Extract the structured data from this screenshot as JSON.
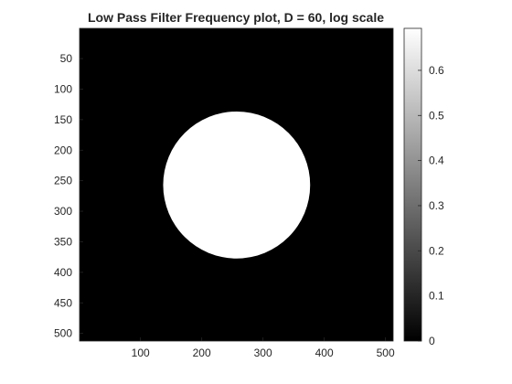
{
  "chart_data": {
    "type": "heatmap",
    "title": "Low Pass Filter Frequency plot, D = 60, log scale",
    "xlabel": "",
    "ylabel": "",
    "image_size": [
      512,
      512
    ],
    "xlim": [
      0.5,
      512.5
    ],
    "ylim": [
      0.5,
      512.5
    ],
    "y_direction": "reverse",
    "xticks": [
      100,
      200,
      300,
      400,
      500
    ],
    "yticks": [
      50,
      100,
      150,
      200,
      250,
      300,
      350,
      400,
      450,
      500
    ],
    "colormap": "gray",
    "clim": [
      0,
      0.6931
    ],
    "colorbar_ticks": [
      0,
      0.1,
      0.2,
      0.3,
      0.4,
      0.5,
      0.6
    ],
    "colorbar_location": "right",
    "filter": {
      "kind": "ideal low pass",
      "cutoff_D": 60,
      "center": [
        257,
        257
      ],
      "inside_value": 0.6931,
      "outside_value": 0
    },
    "grid": false
  }
}
